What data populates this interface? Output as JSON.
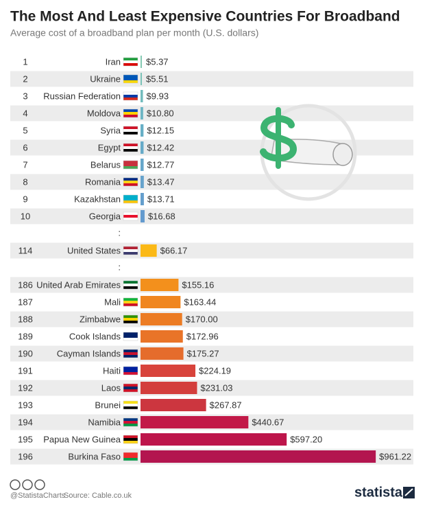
{
  "chart_data": {
    "type": "bar",
    "title": "The Most And Least Expensive Countries For Broadband",
    "subtitle": "Average cost of a broadband plan per month (U.S. dollars)",
    "ranks": [
      1,
      2,
      3,
      4,
      5,
      6,
      7,
      8,
      9,
      10,
      114,
      186,
      187,
      188,
      189,
      190,
      191,
      192,
      193,
      194,
      195,
      196
    ],
    "categories": [
      "Iran",
      "Ukraine",
      "Russian Federation",
      "Moldova",
      "Syria",
      "Egypt",
      "Belarus",
      "Romania",
      "Kazakhstan",
      "Georgia",
      "United States",
      "United Arab Emirates",
      "Mali",
      "Zimbabwe",
      "Cook Islands",
      "Cayman Islands",
      "Haiti",
      "Laos",
      "Brunei",
      "Namibia",
      "Papua New Guinea",
      "Burkina Faso"
    ],
    "values": [
      5.37,
      5.51,
      9.93,
      10.8,
      12.15,
      12.42,
      12.77,
      13.47,
      13.71,
      16.68,
      66.17,
      155.16,
      163.44,
      170.0,
      172.96,
      175.27,
      224.19,
      231.03,
      267.87,
      440.67,
      597.2,
      961.22
    ],
    "value_labels": [
      "$5.37",
      "$5.51",
      "$9.93",
      "$10.80",
      "$12.15",
      "$12.42",
      "$12.77",
      "$13.47",
      "$13.71",
      "$16.68",
      "$66.17",
      "$155.16",
      "$163.44",
      "$170.00",
      "$172.96",
      "$175.27",
      "$224.19",
      "$231.03",
      "$267.87",
      "$440.67",
      "$597.20",
      "$961.22"
    ],
    "colors": [
      "#7fc8b0",
      "#78c2b6",
      "#72bcbd",
      "#6cb5c3",
      "#67afc6",
      "#66aac8",
      "#66a6ca",
      "#65a2cc",
      "#649ecd",
      "#639ace",
      "#fbb917",
      "#f3901c",
      "#f0861f",
      "#ec7c24",
      "#e97428",
      "#e56c2c",
      "#d8433b",
      "#d33e3c",
      "#cc363f",
      "#c21a48",
      "#bd154b",
      "#b3154f"
    ],
    "separators": [
      ":",
      ":"
    ],
    "xlim": [
      0,
      1000
    ],
    "credit": "@StatistaCharts",
    "source": "Source: Cable.co.uk",
    "brand": "statista"
  }
}
